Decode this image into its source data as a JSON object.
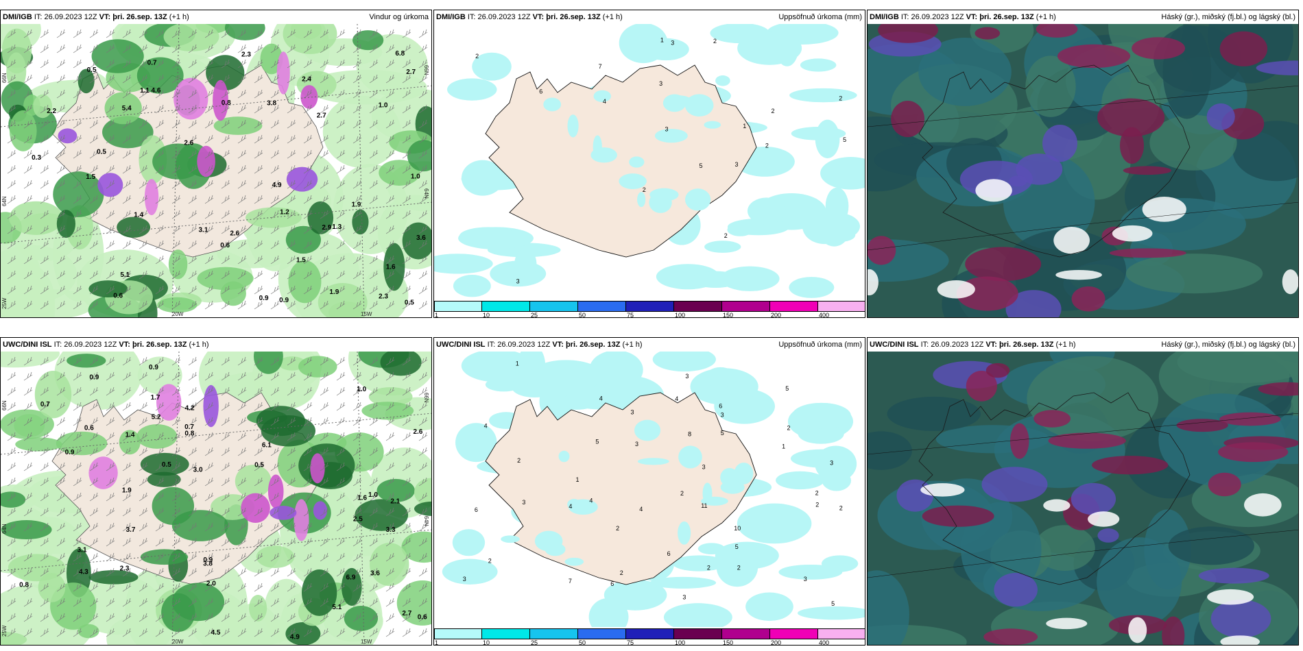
{
  "panels": [
    {
      "source": "DMI/IGB",
      "it_label": "IT:",
      "it_value": "26.09.2023 12Z",
      "vt_label": "VT:",
      "vt_value": "þri. 26.sep. 13Z",
      "offset": "(+1 h)",
      "title_right": "Vindur og úrkoma",
      "map_type": "wind_precip",
      "lon_labels": [
        "20W",
        "15W"
      ],
      "lat_labels_left": [
        "66N",
        "64N",
        "25W"
      ],
      "lat_labels_right": [
        "66N",
        "64N"
      ],
      "values": [
        "1.5",
        "0.9",
        "2.7",
        "0.6",
        "0.5",
        "1.5",
        "2.3",
        "0.5",
        "0.3",
        "1.0",
        "1.2",
        "1.0",
        "1.9",
        "0.9",
        "2.2",
        "3.1",
        "2.6",
        "1.6",
        "0.5",
        "3.8",
        "2.7",
        "4.6",
        "5.1",
        "2.3",
        "5.4",
        "1.9",
        "2.4",
        "1.4",
        "0.6",
        "0.8",
        "2.9",
        "1.3",
        "4.9",
        "3.6",
        "6.8",
        "2.6",
        "0.7",
        "1.1"
      ]
    },
    {
      "source": "DMI/IGB",
      "it_label": "IT:",
      "it_value": "26.09.2023 12Z",
      "vt_label": "VT:",
      "vt_value": "þri. 26.sep. 13Z",
      "offset": "(+1 h)",
      "title_right": "Uppsöfnuð úrkoma (mm)",
      "map_type": "accum",
      "values": [
        "2",
        "3",
        "2",
        "5",
        "4",
        "6",
        "7",
        "2",
        "3",
        "3",
        "2",
        "3",
        "2",
        "2",
        "2",
        "3",
        "1",
        "1",
        "5"
      ],
      "colorbar_ticks": [
        "1",
        "10",
        "25",
        "50",
        "75",
        "100",
        "150",
        "200",
        "400"
      ]
    },
    {
      "source": "DMI/IGB",
      "it_label": "IT:",
      "it_value": "26.09.2023 12Z",
      "vt_label": "VT:",
      "vt_value": "þri. 26.sep. 13Z",
      "offset": "(+1 h)",
      "title_right": "Háský (gr.), miðský (fj.bl.) og lágský (bl.)",
      "map_type": "clouds"
    },
    {
      "source": "UWC/DINI ISL",
      "it_label": "IT:",
      "it_value": "26.09.2023 12Z",
      "vt_label": "VT:",
      "vt_value": "þri. 26.sep. 13Z",
      "offset": "(+1 h)",
      "title_right": "",
      "map_type": "wind_precip",
      "lon_labels": [
        "20W",
        "15W"
      ],
      "lat_labels_left": [
        "66N",
        "64N",
        "25W"
      ],
      "lat_labels_right": [
        "66N",
        "64N"
      ],
      "values": [
        "0.5",
        "2.0",
        "1.7",
        "0.9",
        "0.6",
        "2.1",
        "3.0",
        "0.7",
        "1.0",
        "0.9",
        "0.8",
        "0.7",
        "0.5",
        "0.6",
        "2.6",
        "3.1",
        "3.6",
        "1.0",
        "4.5",
        "3.8",
        "0.8",
        "3.3",
        "1.9",
        "2.7",
        "5.1",
        "6.1",
        "6.9",
        "4.2",
        "2.5",
        "5.2",
        "4.3",
        "3.7",
        "1.6",
        "0.9",
        "2.3",
        "4.9",
        "1.4",
        "0.9"
      ]
    },
    {
      "source": "UWC/DINI ISL",
      "it_label": "IT:",
      "it_value": "26.09.2023 12Z",
      "vt_label": "VT:",
      "vt_value": "þri. 26.sep. 13Z",
      "offset": "(+1 h)",
      "title_right": "Uppsöfnuð úrkoma (mm)",
      "map_type": "accum",
      "values": [
        "2",
        "3",
        "2",
        "10",
        "5",
        "4",
        "3",
        "2",
        "2",
        "5",
        "6",
        "4",
        "3",
        "2",
        "2",
        "11",
        "5",
        "4",
        "3",
        "3",
        "2",
        "4",
        "6",
        "7",
        "5",
        "6",
        "3",
        "1",
        "2",
        "1",
        "4",
        "3",
        "3",
        "2",
        "1",
        "4",
        "2",
        "3",
        "8",
        "5",
        "6",
        "3",
        "2"
      ],
      "colorbar_ticks": [
        "1",
        "10",
        "25",
        "50",
        "75",
        "100",
        "150",
        "200",
        "400"
      ]
    },
    {
      "source": "UWC/DINI ISL",
      "it_label": "IT:",
      "it_value": "26.09.2023 12Z",
      "vt_label": "VT:",
      "vt_value": "þri. 26.sep. 13Z",
      "offset": "(+1 h)",
      "title_right": "Háský (gr.), miðský (fj.bl.) og lágský (bl.)",
      "map_type": "clouds"
    }
  ],
  "colorbar_colors": [
    "#b5fafa",
    "#00e8e8",
    "#16c4ee",
    "#2a6cf0",
    "#2020b8",
    "#6a0050",
    "#b0008e",
    "#f000b6",
    "#f8b0f0"
  ]
}
